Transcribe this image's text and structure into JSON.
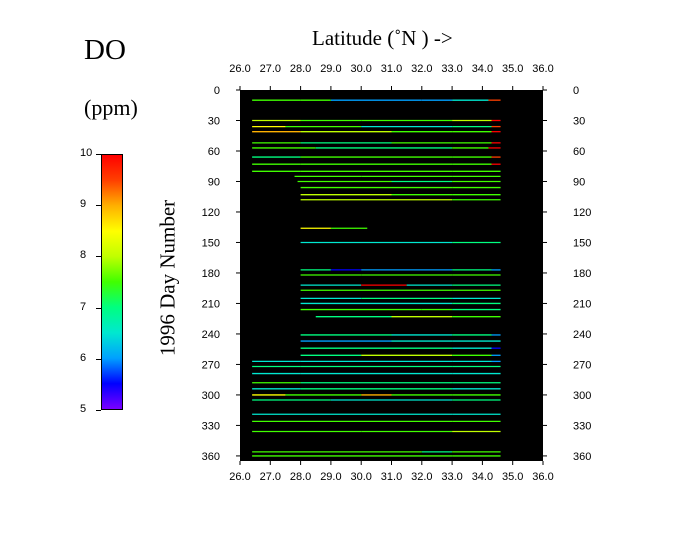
{
  "param_name": "DO",
  "param_unit": "(ppm)",
  "colorbar": {
    "ticks": [
      "10",
      "9",
      "8",
      "7",
      "6",
      "5"
    ],
    "values": [
      10,
      9,
      8,
      7,
      6,
      5
    ],
    "range": [
      5,
      10
    ]
  },
  "chart_data": {
    "type": "scatter",
    "xlabel": "Latitude  (˚N )  ->",
    "ylabel": "1996   Day  Number",
    "xlim": [
      26.0,
      36.0
    ],
    "ylim": [
      0,
      365
    ],
    "xticks": [
      "26.0",
      "27.0",
      "28.0",
      "29.0",
      "30.0",
      "31.0",
      "32.0",
      "33.0",
      "34.0",
      "35.0",
      "36.0"
    ],
    "yticks": [
      "0",
      "30",
      "60",
      "90",
      "120",
      "150",
      "180",
      "210",
      "240",
      "270",
      "300",
      "330",
      "360"
    ],
    "background_color": "#000000",
    "colormap": [
      "#7a00ff",
      "#0000ff",
      "#00a0ff",
      "#00e8d0",
      "#00ff80",
      "#40ff00",
      "#c0ff00",
      "#ffff00",
      "#ffb000",
      "#ff4000",
      "#ff0000"
    ],
    "tracks": [
      {
        "day": 10,
        "lat_start": 26.4,
        "lat_end": 34.6,
        "segments": [
          [
            26.4,
            7.4
          ],
          [
            28.0,
            7.6
          ],
          [
            29.0,
            6.2
          ],
          [
            32.0,
            5.8
          ],
          [
            33.0,
            6.4
          ],
          [
            34.2,
            9.6
          ]
        ]
      },
      {
        "day": 30,
        "lat_start": 26.4,
        "lat_end": 34.6,
        "segments": [
          [
            26.4,
            7.8
          ],
          [
            28.0,
            7.6
          ],
          [
            30.0,
            7.4
          ],
          [
            33.0,
            7.8
          ],
          [
            34.3,
            9.8
          ]
        ]
      },
      {
        "day": 36,
        "lat_start": 26.4,
        "lat_end": 34.6,
        "segments": [
          [
            26.4,
            8.6
          ],
          [
            27.5,
            7.6
          ],
          [
            30.0,
            6.6
          ],
          [
            33.0,
            7.0
          ],
          [
            34.3,
            9.6
          ]
        ]
      },
      {
        "day": 41,
        "lat_start": 26.4,
        "lat_end": 34.6,
        "segments": [
          [
            26.4,
            8.8
          ],
          [
            28.0,
            7.8
          ],
          [
            31.0,
            7.4
          ],
          [
            33.0,
            7.6
          ],
          [
            34.3,
            9.8
          ]
        ]
      },
      {
        "day": 52,
        "lat_start": 26.4,
        "lat_end": 34.6,
        "segments": [
          [
            26.4,
            7.6
          ],
          [
            28.0,
            7.2
          ],
          [
            31.0,
            7.6
          ],
          [
            33.0,
            7.4
          ],
          [
            34.3,
            9.8
          ]
        ]
      },
      {
        "day": 57,
        "lat_start": 26.4,
        "lat_end": 34.6,
        "segments": [
          [
            26.4,
            7.4
          ],
          [
            28.5,
            7.2
          ],
          [
            33.0,
            7.6
          ],
          [
            34.2,
            10.0
          ]
        ]
      },
      {
        "day": 66,
        "lat_start": 26.4,
        "lat_end": 34.6,
        "segments": [
          [
            26.4,
            7.2
          ],
          [
            28.0,
            7.6
          ],
          [
            33.0,
            7.4
          ],
          [
            34.3,
            9.6
          ]
        ]
      },
      {
        "day": 73,
        "lat_start": 26.4,
        "lat_end": 34.6,
        "segments": [
          [
            26.4,
            7.4
          ],
          [
            28.0,
            7.4
          ],
          [
            33.0,
            7.6
          ],
          [
            34.3,
            9.8
          ]
        ]
      },
      {
        "day": 80,
        "lat_start": 26.4,
        "lat_end": 34.6,
        "segments": [
          [
            26.4,
            7.6
          ],
          [
            28.0,
            7.4
          ],
          [
            33.0,
            7.4
          ]
        ]
      },
      {
        "day": 85,
        "lat_start": 27.8,
        "lat_end": 34.6,
        "segments": [
          [
            27.8,
            7.4
          ],
          [
            30.0,
            7.6
          ],
          [
            33.0,
            7.4
          ]
        ]
      },
      {
        "day": 90,
        "lat_start": 27.9,
        "lat_end": 34.6,
        "segments": [
          [
            27.9,
            7.6
          ],
          [
            31.0,
            7.2
          ],
          [
            33.0,
            7.6
          ]
        ]
      },
      {
        "day": 96,
        "lat_start": 28.0,
        "lat_end": 34.6,
        "segments": [
          [
            28.0,
            7.4
          ],
          [
            33.0,
            7.6
          ]
        ]
      },
      {
        "day": 103,
        "lat_start": 28.0,
        "lat_end": 34.6,
        "segments": [
          [
            28.0,
            7.8
          ],
          [
            31.0,
            7.6
          ],
          [
            33.0,
            7.4
          ]
        ]
      },
      {
        "day": 108,
        "lat_start": 28.0,
        "lat_end": 34.6,
        "segments": [
          [
            28.0,
            7.8
          ],
          [
            33.0,
            7.6
          ]
        ]
      },
      {
        "day": 136,
        "lat_start": 28.0,
        "lat_end": 30.2,
        "segments": [
          [
            28.0,
            8.6
          ],
          [
            29.0,
            7.4
          ]
        ]
      },
      {
        "day": 150,
        "lat_start": 28.0,
        "lat_end": 34.6,
        "segments": [
          [
            28.0,
            6.6
          ],
          [
            33.0,
            6.8
          ]
        ]
      },
      {
        "day": 177,
        "lat_start": 28.0,
        "lat_end": 34.6,
        "segments": [
          [
            28.0,
            6.8
          ],
          [
            29.0,
            5.6
          ],
          [
            30.0,
            6.2
          ],
          [
            33.0,
            7.0
          ],
          [
            34.3,
            5.8
          ]
        ]
      },
      {
        "day": 182,
        "lat_start": 28.0,
        "lat_end": 34.6,
        "segments": [
          [
            28.0,
            7.6
          ],
          [
            30.0,
            7.4
          ],
          [
            33.0,
            7.6
          ]
        ]
      },
      {
        "day": 192,
        "lat_start": 28.0,
        "lat_end": 34.6,
        "segments": [
          [
            28.0,
            6.6
          ],
          [
            30.0,
            9.8
          ],
          [
            31.5,
            6.6
          ],
          [
            33.0,
            7.0
          ]
        ]
      },
      {
        "day": 197,
        "lat_start": 28.0,
        "lat_end": 34.6,
        "segments": [
          [
            28.0,
            7.6
          ],
          [
            31.0,
            7.4
          ],
          [
            33.0,
            7.6
          ]
        ]
      },
      {
        "day": 205,
        "lat_start": 28.0,
        "lat_end": 34.6,
        "segments": [
          [
            28.0,
            6.4
          ],
          [
            30.0,
            6.8
          ],
          [
            33.0,
            6.6
          ]
        ]
      },
      {
        "day": 210,
        "lat_start": 28.0,
        "lat_end": 34.6,
        "segments": [
          [
            28.0,
            6.6
          ],
          [
            31.0,
            6.4
          ],
          [
            33.0,
            7.0
          ]
        ]
      },
      {
        "day": 216,
        "lat_start": 28.0,
        "lat_end": 34.6,
        "segments": [
          [
            28.0,
            7.4
          ],
          [
            32.0,
            7.6
          ],
          [
            33.0,
            7.2
          ]
        ]
      },
      {
        "day": 223,
        "lat_start": 28.5,
        "lat_end": 34.6,
        "segments": [
          [
            28.5,
            7.2
          ],
          [
            31.0,
            7.8
          ],
          [
            33.0,
            7.4
          ]
        ]
      },
      {
        "day": 241,
        "lat_start": 28.0,
        "lat_end": 34.6,
        "segments": [
          [
            28.0,
            6.8
          ],
          [
            31.0,
            6.6
          ],
          [
            33.0,
            7.0
          ],
          [
            34.3,
            5.8
          ]
        ]
      },
      {
        "day": 247,
        "lat_start": 28.0,
        "lat_end": 34.6,
        "segments": [
          [
            28.0,
            6.2
          ],
          [
            31.0,
            6.6
          ],
          [
            33.0,
            6.4
          ]
        ]
      },
      {
        "day": 254,
        "lat_start": 28.0,
        "lat_end": 34.6,
        "segments": [
          [
            28.0,
            6.8
          ],
          [
            33.0,
            6.6
          ],
          [
            34.3,
            5.6
          ]
        ]
      },
      {
        "day": 261,
        "lat_start": 28.0,
        "lat_end": 34.6,
        "segments": [
          [
            28.0,
            7.2
          ],
          [
            30.0,
            8.0
          ],
          [
            33.0,
            7.4
          ],
          [
            34.3,
            5.8
          ]
        ]
      },
      {
        "day": 267,
        "lat_start": 26.4,
        "lat_end": 34.6,
        "segments": [
          [
            26.4,
            6.6
          ],
          [
            28.0,
            6.4
          ],
          [
            33.0,
            6.6
          ],
          [
            34.3,
            5.8
          ]
        ]
      },
      {
        "day": 272,
        "lat_start": 26.4,
        "lat_end": 34.6,
        "segments": [
          [
            26.4,
            6.8
          ],
          [
            28.0,
            7.0
          ],
          [
            33.0,
            6.8
          ]
        ]
      },
      {
        "day": 279,
        "lat_start": 26.4,
        "lat_end": 34.6,
        "segments": [
          [
            26.4,
            6.4
          ],
          [
            28.0,
            6.6
          ],
          [
            33.0,
            6.4
          ]
        ]
      },
      {
        "day": 288,
        "lat_start": 26.4,
        "lat_end": 34.6,
        "segments": [
          [
            26.4,
            7.4
          ],
          [
            28.0,
            7.0
          ],
          [
            33.0,
            7.2
          ]
        ]
      },
      {
        "day": 294,
        "lat_start": 26.4,
        "lat_end": 34.6,
        "segments": [
          [
            26.4,
            6.6
          ],
          [
            28.0,
            6.8
          ],
          [
            33.0,
            6.6
          ]
        ]
      },
      {
        "day": 300,
        "lat_start": 26.4,
        "lat_end": 34.6,
        "segments": [
          [
            26.4,
            8.4
          ],
          [
            27.5,
            7.6
          ],
          [
            30.0,
            8.8
          ],
          [
            31.0,
            7.6
          ],
          [
            33.0,
            7.4
          ]
        ]
      },
      {
        "day": 305,
        "lat_start": 26.4,
        "lat_end": 34.6,
        "segments": [
          [
            26.4,
            6.8
          ],
          [
            29.0,
            6.6
          ],
          [
            33.0,
            6.8
          ]
        ]
      },
      {
        "day": 319,
        "lat_start": 26.4,
        "lat_end": 34.6,
        "segments": [
          [
            26.4,
            6.4
          ],
          [
            33.0,
            6.6
          ]
        ]
      },
      {
        "day": 326,
        "lat_start": 26.4,
        "lat_end": 34.6,
        "segments": [
          [
            26.4,
            7.4
          ],
          [
            33.0,
            7.6
          ]
        ]
      },
      {
        "day": 336,
        "lat_start": 26.4,
        "lat_end": 34.6,
        "segments": [
          [
            26.4,
            7.6
          ],
          [
            30.0,
            7.4
          ],
          [
            33.0,
            7.8
          ]
        ]
      },
      {
        "day": 356,
        "lat_start": 26.4,
        "lat_end": 34.6,
        "segments": [
          [
            26.4,
            7.4
          ],
          [
            32.0,
            7.2
          ],
          [
            33.0,
            7.6
          ]
        ]
      },
      {
        "day": 360,
        "lat_start": 26.4,
        "lat_end": 34.6,
        "segments": [
          [
            26.4,
            7.6
          ],
          [
            33.0,
            7.4
          ]
        ]
      }
    ]
  }
}
